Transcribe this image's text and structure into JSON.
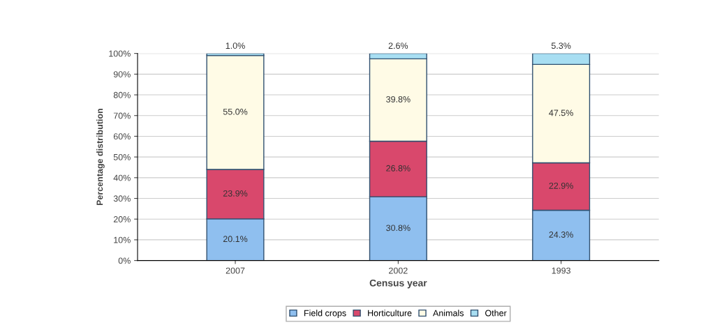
{
  "chart_data": {
    "type": "bar",
    "stacked": true,
    "xlabel": "Census year",
    "ylabel": "Percentage distribution",
    "categories": [
      "2007",
      "2002",
      "1993"
    ],
    "series": [
      {
        "name": "Field crops",
        "color": "#8fbfef",
        "values": [
          20.1,
          30.8,
          24.3
        ],
        "value_labels": [
          "20.1%",
          "30.8%",
          "24.3%"
        ]
      },
      {
        "name": "Horticulture",
        "color": "#d9486c",
        "values": [
          23.9,
          26.8,
          22.9
        ],
        "value_labels": [
          "23.9%",
          "26.8%",
          "22.9%"
        ]
      },
      {
        "name": "Animals",
        "color": "#fffbe6",
        "values": [
          55.0,
          39.8,
          47.5
        ],
        "value_labels": [
          "55.0%",
          "39.8%",
          "47.5%"
        ]
      },
      {
        "name": "Other",
        "color": "#a8def2",
        "values": [
          1.0,
          2.6,
          5.3
        ],
        "value_labels": [
          "1.0%",
          "2.6%",
          "5.3%"
        ]
      }
    ],
    "ylim": [
      0,
      100
    ],
    "yticks": [
      {
        "value": 0,
        "label": "0%"
      },
      {
        "value": 10,
        "label": "10%"
      },
      {
        "value": 20,
        "label": "20%"
      },
      {
        "value": 30,
        "label": "30%"
      },
      {
        "value": 40,
        "label": "40%"
      },
      {
        "value": 50,
        "label": "50%"
      },
      {
        "value": 60,
        "label": "60%"
      },
      {
        "value": 70,
        "label": "70%"
      },
      {
        "value": 80,
        "label": "80%"
      },
      {
        "value": 90,
        "label": "90%"
      },
      {
        "value": 100,
        "label": "100%"
      }
    ],
    "grid": "y",
    "legend": "bottom"
  }
}
